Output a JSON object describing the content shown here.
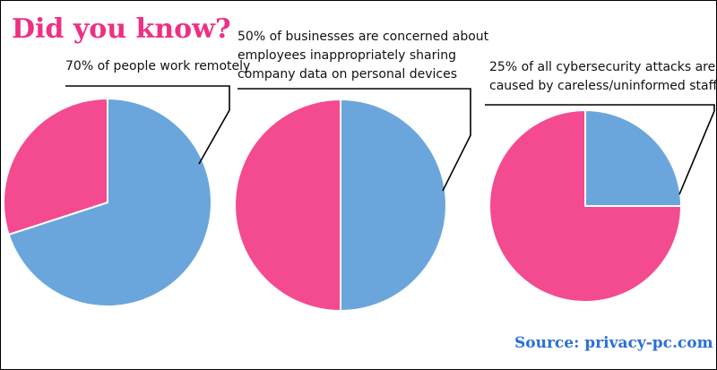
{
  "header": {
    "title": "Did you know?"
  },
  "footer": {
    "source": "Source: privacy-pc.com"
  },
  "colors": {
    "title": "#ee2f84",
    "source": "#2b6fd6",
    "slice_blue": "#6aa6dc",
    "slice_pink": "#f44a8f",
    "leader": "#000000"
  },
  "chart_data": [
    {
      "type": "pie",
      "caption_lines": [
        "70% of people work remotely"
      ],
      "slices": [
        {
          "value": 70,
          "color": "#6aa6dc"
        },
        {
          "value": 30,
          "color": "#f44a8f"
        }
      ]
    },
    {
      "type": "pie",
      "caption_lines": [
        "50% of businesses are concerned about",
        "employees inappropriately sharing",
        "company data on personal devices"
      ],
      "slices": [
        {
          "value": 50,
          "color": "#6aa6dc"
        },
        {
          "value": 50,
          "color": "#f44a8f"
        }
      ]
    },
    {
      "type": "pie",
      "caption_lines": [
        "25% of all cybersecurity attacks are",
        "caused by careless/uninformed staff"
      ],
      "slices": [
        {
          "value": 25,
          "color": "#6aa6dc"
        },
        {
          "value": 75,
          "color": "#f44a8f"
        }
      ]
    }
  ]
}
